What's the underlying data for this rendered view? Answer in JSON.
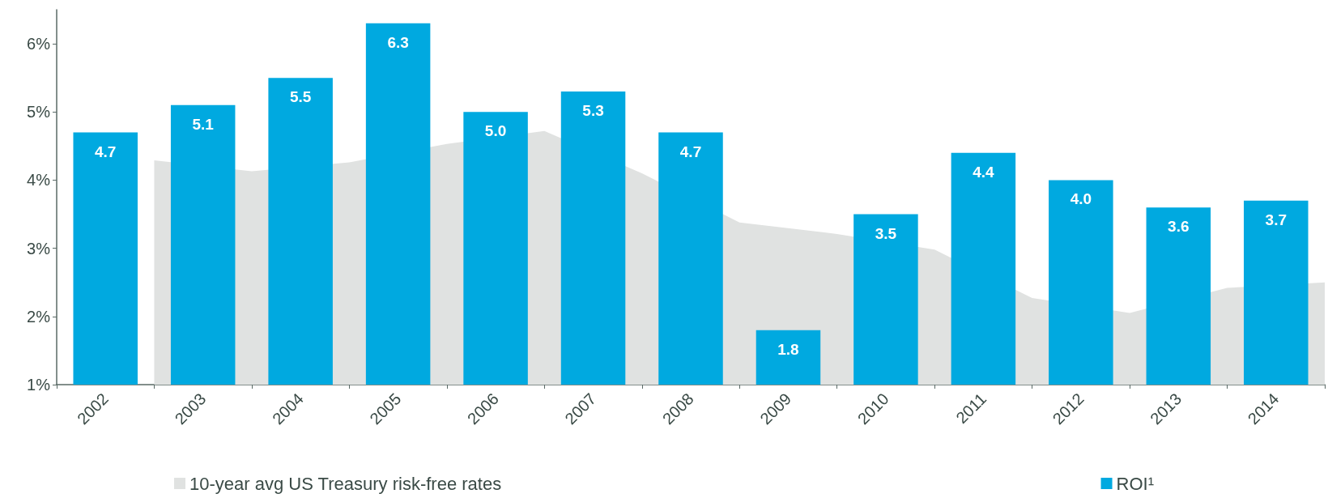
{
  "chart_data": {
    "type": "bar",
    "x": [
      2002,
      2003,
      2004,
      2005,
      2006,
      2007,
      2008,
      2009,
      2010,
      2011,
      2012,
      2013,
      2014
    ],
    "series": [
      {
        "name": "10-year avg US Treasury risk-free rates",
        "type": "area",
        "color": "#e0e2e1",
        "x": [
          2002.5,
          2003.5,
          2004.5,
          2005.5,
          2006.5,
          2007.5,
          2008.5,
          2009.5,
          2010.5,
          2011.5,
          2012.5,
          2013.5,
          2014.5
        ],
        "values": [
          4.29,
          4.13,
          4.26,
          4.53,
          4.72,
          4.1,
          3.38,
          3.21,
          2.98,
          2.27,
          2.05,
          2.42,
          2.5
        ]
      },
      {
        "name": "ROI¹",
        "color": "#00a9e0",
        "values": [
          4.7,
          5.1,
          5.5,
          6.3,
          5.0,
          5.3,
          4.7,
          1.8,
          3.5,
          4.4,
          4.0,
          3.6,
          3.7
        ],
        "value_labels": [
          "4.7",
          "5.1",
          "5.5",
          "6.3",
          "5.0",
          "5.3",
          "4.7",
          "1.8",
          "3.5",
          "4.4",
          "4.0",
          "3.6",
          "3.7"
        ]
      }
    ],
    "xlim": [
      2001.5,
      2014.5
    ],
    "xticks": [
      {
        "value": 2001.5,
        "label": null
      },
      2002,
      {
        "value": 2002.5,
        "label": null
      },
      2003,
      {
        "value": 2003.5,
        "label": null
      },
      2004,
      {
        "value": 2004.5,
        "label": null
      },
      2005,
      {
        "value": 2005.5,
        "label": null
      },
      2006,
      {
        "value": 2006.5,
        "label": null
      },
      2007,
      {
        "value": 2007.5,
        "label": null
      },
      2008,
      {
        "value": 2008.5,
        "label": null
      },
      2009,
      {
        "value": 2009.5,
        "label": null
      },
      2010,
      {
        "value": 2010.5,
        "label": null
      },
      2011,
      {
        "value": 2011.5,
        "label": null
      },
      2012,
      {
        "value": 2012.5,
        "label": null
      },
      2013,
      {
        "value": 2013.5,
        "label": null
      },
      2014,
      {
        "value": 2014.5,
        "label": null
      }
    ],
    "ylim": [
      1,
      6.5
    ],
    "yticks": [
      {
        "value": 1,
        "label": "1%"
      },
      {
        "value": 2,
        "label": "2%"
      },
      {
        "value": 3,
        "label": "3%"
      },
      {
        "value": 4,
        "label": "4%"
      },
      {
        "value": 5,
        "label": "5%"
      },
      {
        "value": 6,
        "label": "6%"
      }
    ],
    "grid": false,
    "legend": "bottom"
  }
}
